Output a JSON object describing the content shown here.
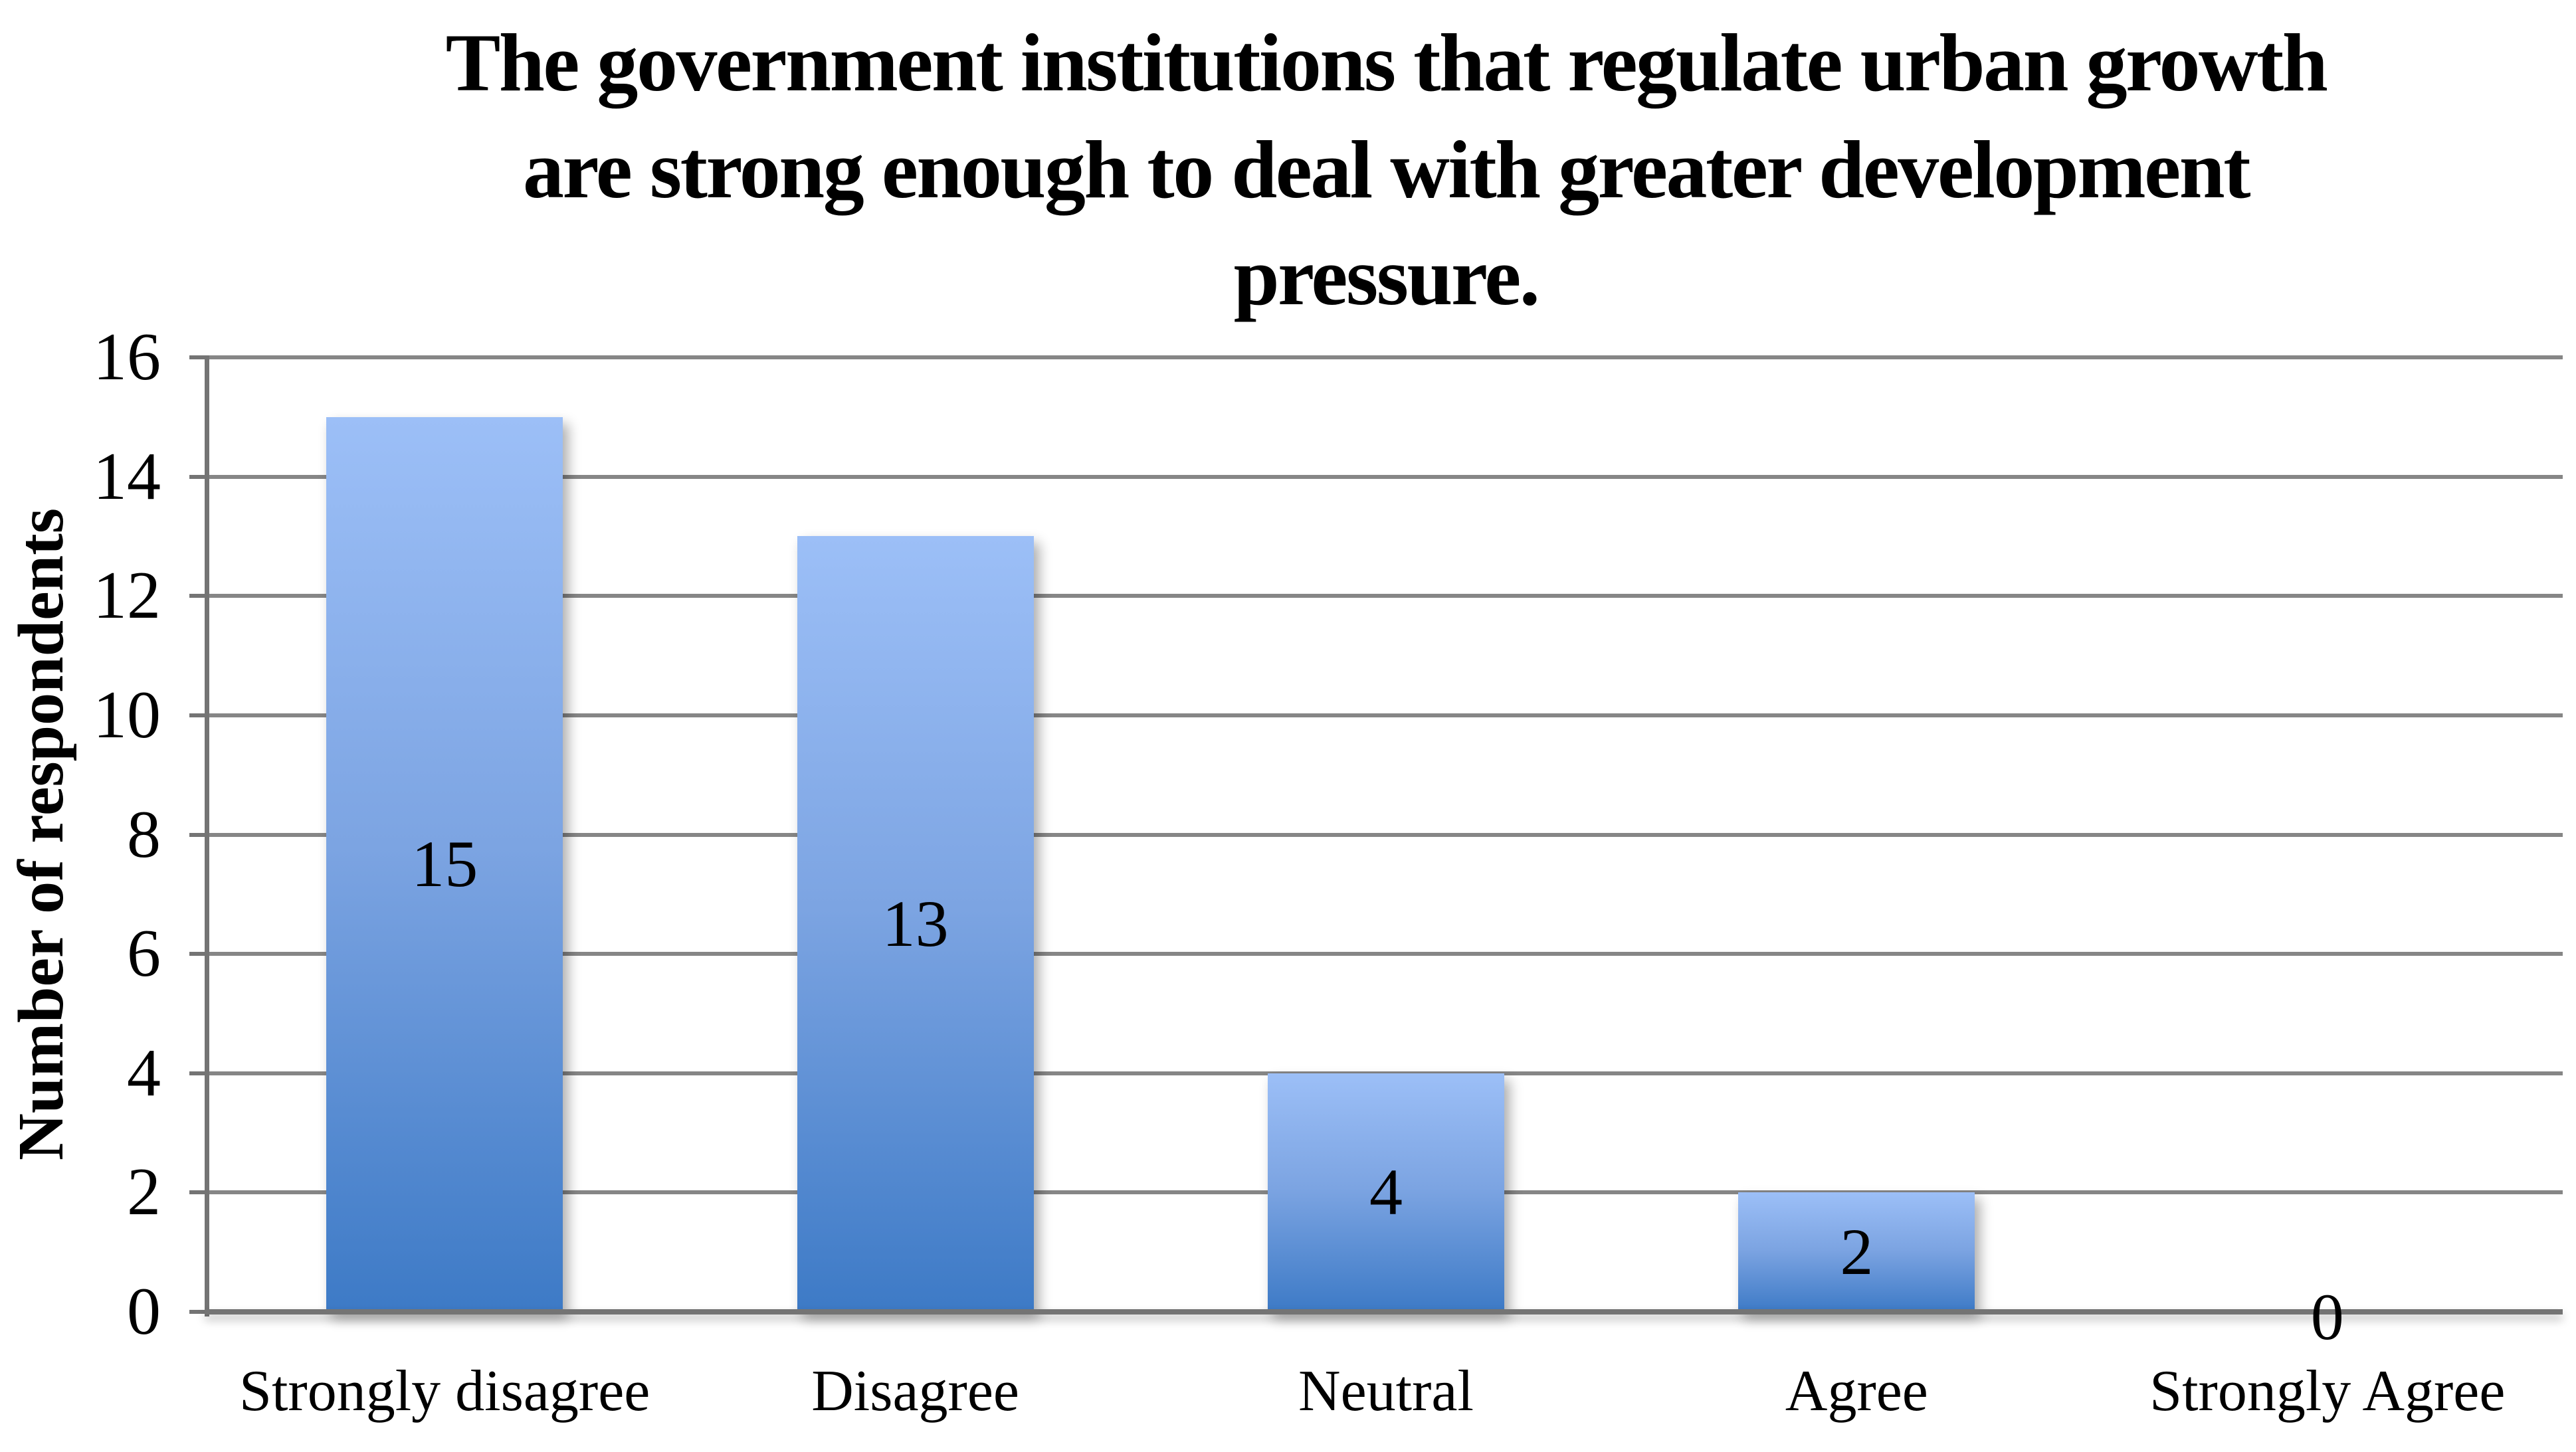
{
  "chart_data": {
    "type": "bar",
    "title": "The government institutions that regulate urban growth are strong enough to deal with greater development pressure.",
    "title_lines": [
      "The government institutions that regulate urban growth",
      "are strong enough to deal with greater development",
      "pressure."
    ],
    "ylabel": "Number of respondents",
    "xlabel": "",
    "categories": [
      "Strongly disagree",
      "Disagree",
      "Neutral",
      "Agree",
      "Strongly Agree"
    ],
    "values": [
      15,
      13,
      4,
      2,
      0
    ],
    "ylim": [
      0,
      16
    ],
    "yticks": [
      0,
      2,
      4,
      6,
      8,
      10,
      12,
      14,
      16
    ],
    "grid": "horizontal",
    "legend_position": "none",
    "colors": {
      "bar_top": "#9cbff7",
      "bar_mid": "#7ca4e2",
      "bar_bottom": "#3d7ac6",
      "gridline": "#868686",
      "axis": "#747474",
      "text": "#000000",
      "background": "#ffffff"
    }
  }
}
